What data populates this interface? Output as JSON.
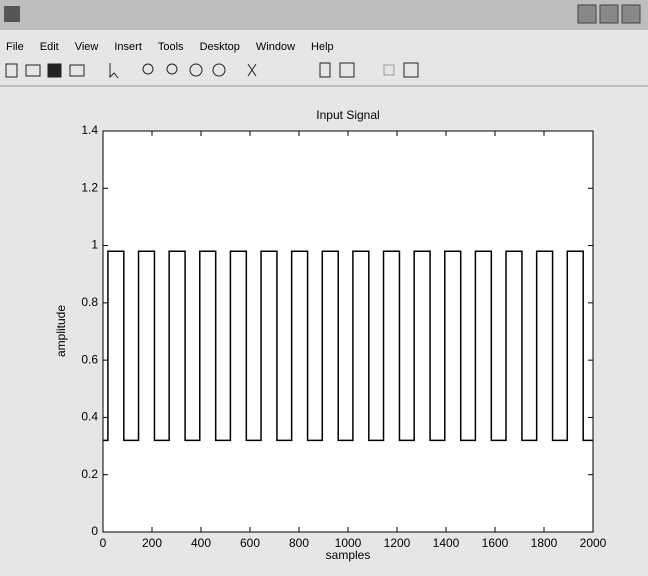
{
  "window": {
    "menu": [
      "File",
      "Edit",
      "View",
      "Insert",
      "Tools",
      "Desktop",
      "Window",
      "Help"
    ]
  },
  "chart_data": {
    "type": "line",
    "title": "Input Signal",
    "x_label": "samples",
    "y_label": "amplitude",
    "x": [
      0,
      20,
      20,
      85,
      85,
      145,
      145,
      210,
      210,
      270,
      270,
      335,
      335,
      395,
      395,
      460,
      460,
      520,
      520,
      585,
      585,
      645,
      645,
      710,
      710,
      770,
      770,
      835,
      835,
      895,
      895,
      960,
      960,
      1020,
      1020,
      1085,
      1085,
      1145,
      1145,
      1210,
      1210,
      1270,
      1270,
      1335,
      1335,
      1395,
      1395,
      1460,
      1460,
      1520,
      1520,
      1585,
      1585,
      1645,
      1645,
      1710,
      1710,
      1770,
      1770,
      1835,
      1835,
      1895,
      1895,
      1960,
      1960,
      2000
    ],
    "values": [
      0.32,
      0.32,
      0.98,
      0.98,
      0.32,
      0.32,
      0.98,
      0.98,
      0.32,
      0.32,
      0.98,
      0.98,
      0.32,
      0.32,
      0.98,
      0.98,
      0.32,
      0.32,
      0.98,
      0.98,
      0.32,
      0.32,
      0.98,
      0.98,
      0.32,
      0.32,
      0.98,
      0.98,
      0.32,
      0.32,
      0.98,
      0.98,
      0.32,
      0.32,
      0.98,
      0.98,
      0.32,
      0.32,
      0.98,
      0.98,
      0.32,
      0.32,
      0.98,
      0.98,
      0.32,
      0.32,
      0.98,
      0.98,
      0.32,
      0.32,
      0.98,
      0.98,
      0.32,
      0.32,
      0.98,
      0.98,
      0.32,
      0.32,
      0.98,
      0.98,
      0.32,
      0.32,
      0.98,
      0.98,
      0.32,
      0.32
    ],
    "color": "#000000",
    "xlim": [
      0,
      2000
    ],
    "xticks": [
      0,
      200,
      400,
      600,
      800,
      1000,
      1200,
      1400,
      1600,
      1800,
      2000
    ],
    "ylim": [
      0,
      1.4
    ],
    "yticks": [
      0,
      0.2,
      0.4,
      0.6,
      0.8,
      1,
      1.2,
      1.4
    ]
  }
}
